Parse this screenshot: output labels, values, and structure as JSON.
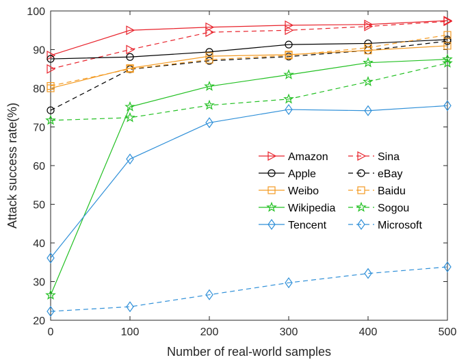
{
  "chart_data": {
    "type": "line",
    "title": "",
    "xlabel": "Number of real-world samples",
    "ylabel": "Attack success rate(%)",
    "x": [
      0,
      100,
      200,
      300,
      400,
      500
    ],
    "xlim": [
      0,
      500
    ],
    "ylim": [
      20,
      100
    ],
    "xticks": [
      "0",
      "100",
      "200",
      "300",
      "400",
      "500"
    ],
    "yticks": [
      "20",
      "30",
      "40",
      "50",
      "60",
      "70",
      "80",
      "90",
      "100"
    ],
    "grid": false,
    "legend_position": "right",
    "series": [
      {
        "name": "Amazon",
        "color": "#e8222b",
        "dash": "solid",
        "marker": "triangle-right",
        "values": [
          88.5,
          95.0,
          95.8,
          96.3,
          96.5,
          97.5
        ]
      },
      {
        "name": "Sina",
        "color": "#e8222b",
        "dash": "dashed",
        "marker": "triangle-right",
        "values": [
          85.0,
          90.0,
          94.5,
          95.0,
          96.0,
          97.3
        ]
      },
      {
        "name": "Apple",
        "color": "#000000",
        "dash": "solid",
        "marker": "circle",
        "values": [
          87.6,
          88.1,
          89.4,
          91.3,
          91.6,
          92.6
        ]
      },
      {
        "name": "eBay",
        "color": "#000000",
        "dash": "dashed",
        "marker": "circle",
        "values": [
          74.3,
          84.9,
          87.1,
          88.2,
          89.8,
          92.2
        ]
      },
      {
        "name": "Weibo",
        "color": "#f39a22",
        "dash": "solid",
        "marker": "square",
        "values": [
          80.0,
          85.2,
          88.3,
          88.7,
          89.8,
          91.0
        ]
      },
      {
        "name": "Baidu",
        "color": "#f39a22",
        "dash": "dashed",
        "marker": "square",
        "values": [
          80.6,
          85.0,
          87.4,
          88.5,
          90.5,
          93.8
        ]
      },
      {
        "name": "Wikipedia",
        "color": "#22c022",
        "dash": "solid",
        "marker": "star",
        "values": [
          26.5,
          75.2,
          80.5,
          83.5,
          86.6,
          87.5
        ]
      },
      {
        "name": "Sogou",
        "color": "#22c022",
        "dash": "dashed",
        "marker": "star",
        "values": [
          71.7,
          72.4,
          75.6,
          77.2,
          81.7,
          86.5
        ]
      },
      {
        "name": "Tencent",
        "color": "#2e8fd8",
        "dash": "solid",
        "marker": "diamond",
        "values": [
          36.1,
          61.7,
          71.1,
          74.5,
          74.2,
          75.5
        ]
      },
      {
        "name": "Microsoft",
        "color": "#2e8fd8",
        "dash": "dashed",
        "marker": "diamond",
        "values": [
          22.3,
          23.5,
          26.6,
          29.7,
          32.1,
          33.8
        ]
      }
    ]
  }
}
